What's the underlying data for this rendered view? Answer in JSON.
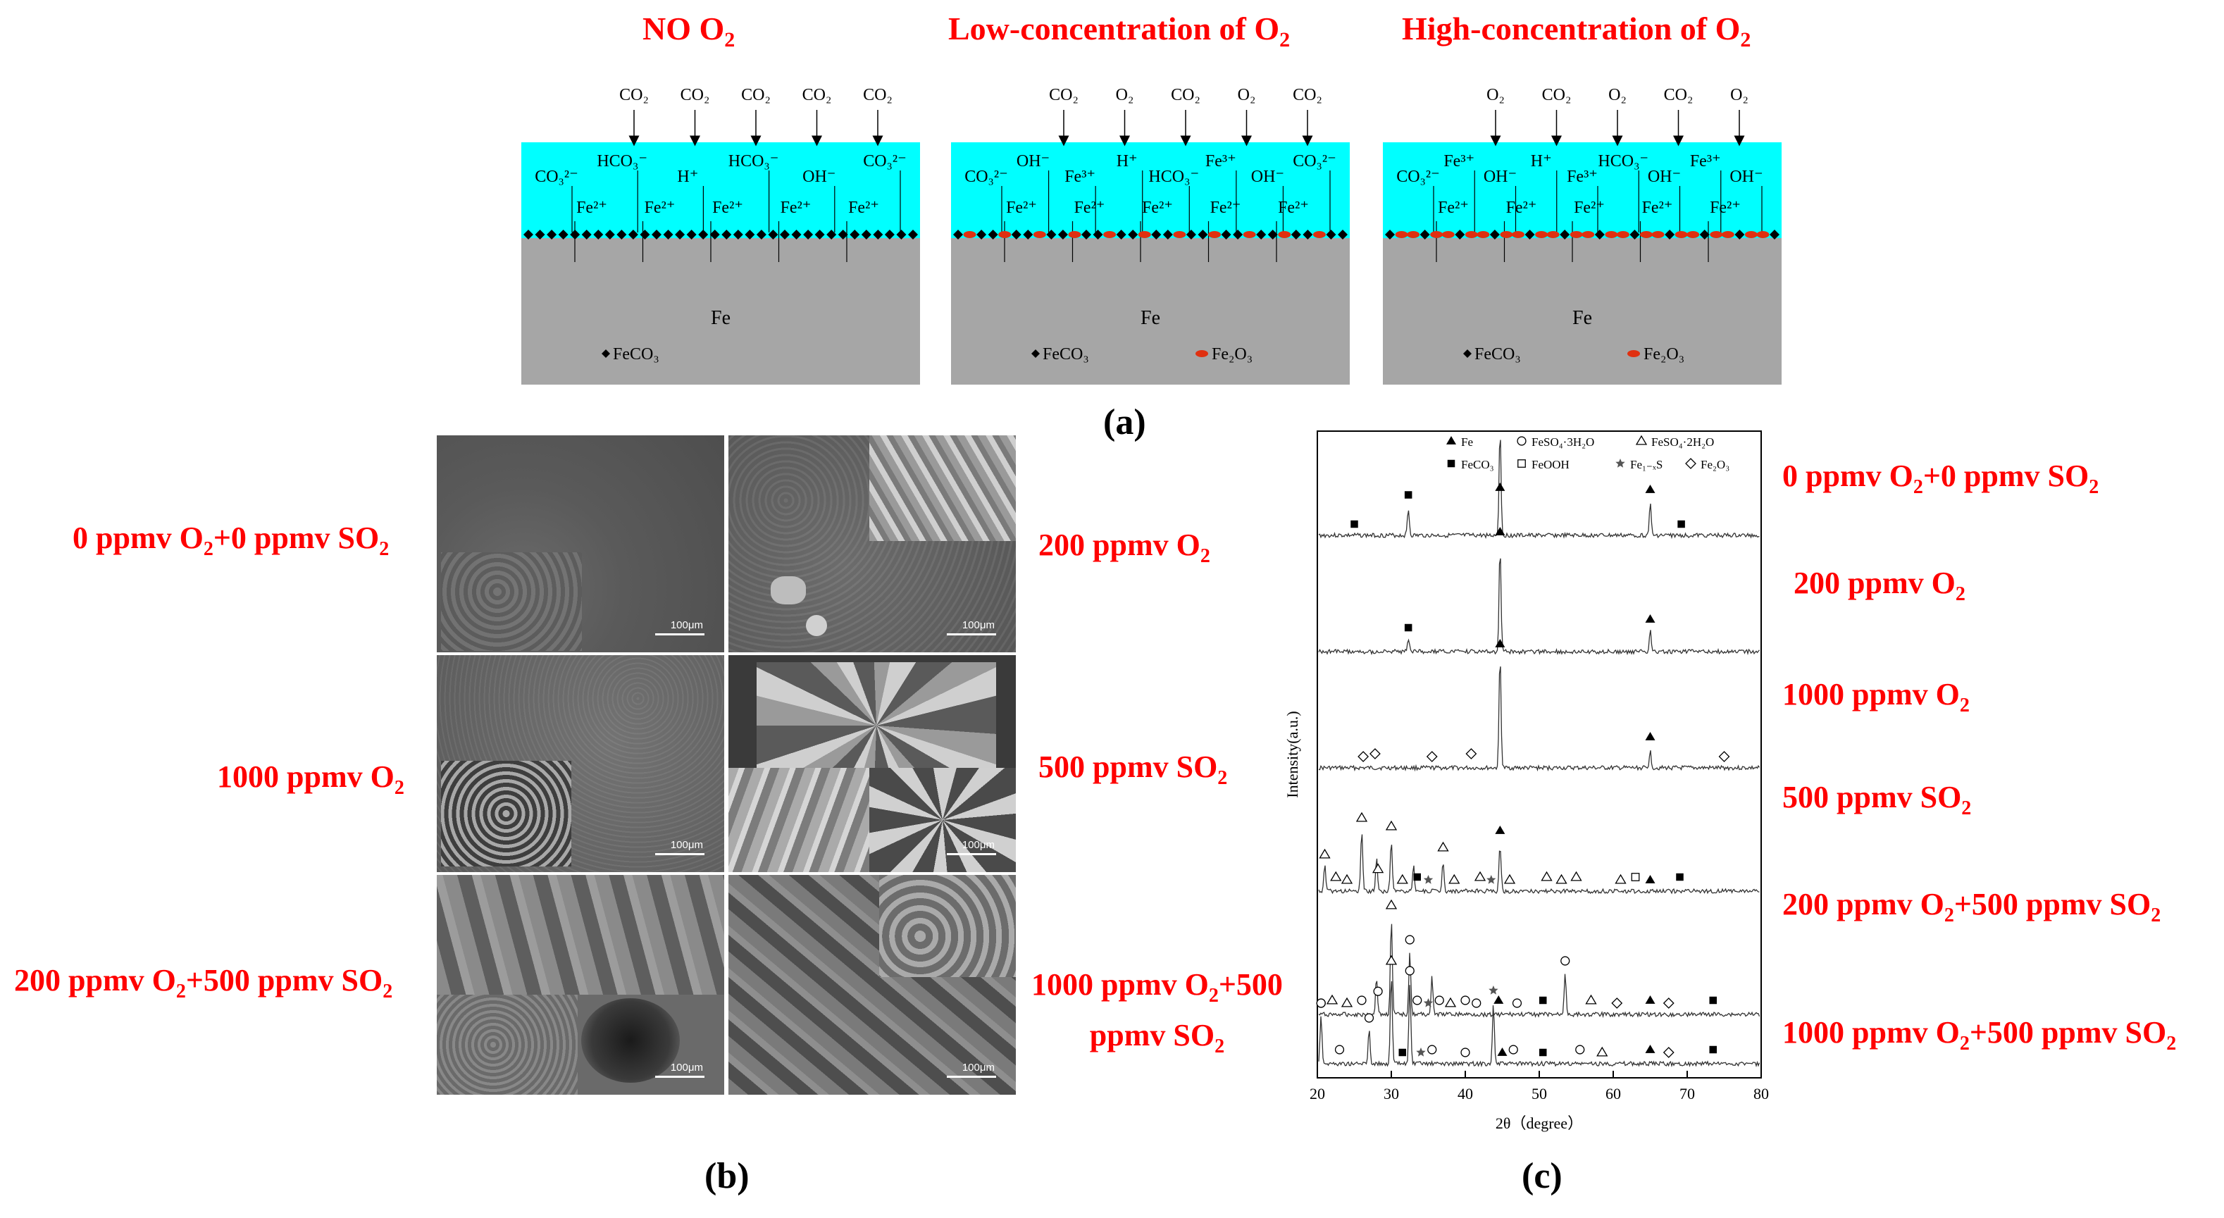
{
  "panel_a": {
    "label": "(a)",
    "diagrams": [
      {
        "title_main": "NO O",
        "title_sub": "2",
        "title_tail": "",
        "top_gases": [
          "CO₂",
          "CO₂",
          "CO₂",
          "CO₂",
          "CO₂"
        ],
        "solution_ions": [
          "CO₃²⁻",
          "HCO₃⁻",
          "H⁺",
          "HCO₃⁻",
          "OH⁻",
          "CO₃²⁻",
          "Fe²⁺",
          "Fe²⁺",
          "Fe²⁺",
          "Fe²⁺",
          "Fe²⁺"
        ],
        "metal": "Fe",
        "legend": [
          "FeCO₃"
        ]
      },
      {
        "title_main": "Low-concentration of O",
        "title_sub": "2",
        "title_tail": "",
        "top_gases": [
          "CO₂",
          "O₂",
          "CO₂",
          "O₂",
          "CO₂"
        ],
        "solution_ions": [
          "CO₃²⁻",
          "OH⁻",
          "Fe³⁺",
          "H⁺",
          "HCO₃⁻",
          "Fe³⁺",
          "OH⁻",
          "CO₃²⁻",
          "Fe²⁺",
          "Fe²⁺",
          "Fe²⁺",
          "Fe²⁺",
          "Fe²⁺"
        ],
        "metal": "Fe",
        "legend": [
          "FeCO₃",
          "Fe₂O₃"
        ]
      },
      {
        "title_main": "High-concentration of O",
        "title_sub": "2",
        "title_tail": "",
        "top_gases": [
          "O₂",
          "CO₂",
          "O₂",
          "CO₂",
          "O₂"
        ],
        "solution_ions": [
          "CO₃²⁻",
          "Fe³⁺",
          "OH⁻",
          "H⁺",
          "Fe³⁺",
          "HCO₃⁻",
          "OH⁻",
          "Fe³⁺",
          "OH⁻",
          "Fe²⁺",
          "Fe²⁺",
          "Fe²⁺",
          "Fe²⁺",
          "Fe²⁺"
        ],
        "metal": "Fe",
        "legend": [
          "FeCO₃",
          "Fe₂O₃"
        ]
      }
    ]
  },
  "panel_b": {
    "label": "(b)",
    "left_labels": [
      {
        "pre": "0 ppmv O",
        "sub1": "2",
        "mid": "+0 ppmv SO",
        "sub2": "2"
      },
      {
        "pre": "1000 ppmv O",
        "sub1": "2",
        "mid": "",
        "sub2": ""
      },
      {
        "pre": "200 ppmv O",
        "sub1": "2",
        "mid": "+500 ppmv SO",
        "sub2": "2"
      }
    ],
    "right_labels": [
      {
        "line1_pre": "200 ppmv O",
        "line1_sub": "2",
        "line2": ""
      },
      {
        "line1_pre": "500 ppmv SO",
        "line1_sub": "2",
        "line2": ""
      },
      {
        "line1_pre": "1000 ppmv O",
        "line1_sub": "2",
        "line1_tail": "+500",
        "line2": "ppmv SO",
        "line2_sub": "2"
      }
    ],
    "scale_bar": "100μm"
  },
  "panel_c": {
    "label": "(c)",
    "chart_data": {
      "type": "line",
      "xlabel": "2θ（degree）",
      "ylabel": "Intensity(a.u.)",
      "xlim": [
        20,
        80
      ],
      "xticks": [
        20,
        30,
        40,
        50,
        60,
        70,
        80
      ],
      "legend": [
        {
          "marker": "filled-triangle",
          "label": "Fe"
        },
        {
          "marker": "open-circle",
          "label": "FeSO₄·3H₂O"
        },
        {
          "marker": "open-triangle",
          "label": "FeSO₄·2H₂O"
        },
        {
          "marker": "filled-square",
          "label": "FeCO₃"
        },
        {
          "marker": "open-square",
          "label": "FeOOH"
        },
        {
          "marker": "star",
          "label": "Fe₁₋ₓS"
        },
        {
          "marker": "open-diamond",
          "label": "Fe₂O₃"
        }
      ],
      "series": [
        {
          "name": "0 ppmv O₂+0 ppmv SO₂",
          "peaks": [
            [
              32.3,
              0.25
            ],
            [
              44.7,
              1.0
            ],
            [
              65.0,
              0.3
            ]
          ],
          "markers": [
            [
              25,
              "filled-square"
            ],
            [
              32.3,
              "filled-square"
            ],
            [
              44.7,
              "filled-triangle"
            ],
            [
              65.0,
              "filled-triangle"
            ],
            [
              69.2,
              "filled-square"
            ]
          ]
        },
        {
          "name": "200 ppmv O₂",
          "peaks": [
            [
              32.3,
              0.12
            ],
            [
              44.7,
              1.0
            ],
            [
              65.0,
              0.2
            ]
          ],
          "markers": [
            [
              32.3,
              "filled-square"
            ],
            [
              44.7,
              "filled-triangle"
            ],
            [
              65.0,
              "filled-triangle"
            ]
          ]
        },
        {
          "name": "1000 ppmv O₂",
          "peaks": [
            [
              44.7,
              1.0
            ],
            [
              65.0,
              0.15
            ]
          ],
          "markers": [
            [
              26.2,
              "open-diamond"
            ],
            [
              27.8,
              "open-diamond"
            ],
            [
              35.5,
              "open-diamond"
            ],
            [
              40.8,
              "open-diamond"
            ],
            [
              44.7,
              "filled-triangle"
            ],
            [
              65.0,
              "filled-triangle"
            ],
            [
              75.0,
              "open-diamond"
            ]
          ]
        },
        {
          "name": "500 ppmv SO₂",
          "peaks": [
            [
              26.0,
              0.7
            ],
            [
              28.0,
              0.4
            ],
            [
              30.0,
              0.6
            ],
            [
              44.7,
              0.55
            ],
            [
              37.0,
              0.35
            ],
            [
              21.0,
              0.3
            ],
            [
              33.0,
              0.3
            ]
          ],
          "markers": [
            [
              21.0,
              "open-triangle"
            ],
            [
              22.5,
              "open-triangle"
            ],
            [
              24.0,
              "open-triangle"
            ],
            [
              26.0,
              "open-triangle"
            ],
            [
              28.2,
              "open-triangle"
            ],
            [
              30.0,
              "open-triangle"
            ],
            [
              31.5,
              "open-triangle"
            ],
            [
              33.5,
              "filled-square"
            ],
            [
              35.0,
              "star"
            ],
            [
              37.0,
              "open-triangle"
            ],
            [
              38.5,
              "open-triangle"
            ],
            [
              42.0,
              "open-triangle"
            ],
            [
              43.5,
              "star"
            ],
            [
              44.7,
              "filled-triangle"
            ],
            [
              46.0,
              "open-triangle"
            ],
            [
              51.0,
              "open-triangle"
            ],
            [
              53.0,
              "open-triangle"
            ],
            [
              55.0,
              "open-triangle"
            ],
            [
              61.0,
              "open-triangle"
            ],
            [
              63.0,
              "open-square"
            ],
            [
              65.0,
              "filled-triangle"
            ],
            [
              69.0,
              "filled-square"
            ]
          ]
        },
        {
          "name": "200 ppmv O₂+500 ppmv SO₂",
          "peaks": [
            [
              30.0,
              0.9
            ],
            [
              32.5,
              0.6
            ],
            [
              28.0,
              0.35
            ],
            [
              53.5,
              0.4
            ],
            [
              35.5,
              0.35
            ]
          ],
          "markers": [
            [
              20.5,
              "open-circle"
            ],
            [
              22.0,
              "open-triangle"
            ],
            [
              24.0,
              "open-triangle"
            ],
            [
              26.0,
              "open-circle"
            ],
            [
              28.2,
              "open-circle"
            ],
            [
              30.0,
              "open-triangle"
            ],
            [
              32.5,
              "open-circle"
            ],
            [
              33.5,
              "open-circle"
            ],
            [
              35.0,
              "star"
            ],
            [
              36.5,
              "open-circle"
            ],
            [
              38.0,
              "open-triangle"
            ],
            [
              40.0,
              "open-circle"
            ],
            [
              41.5,
              "open-circle"
            ],
            [
              44.5,
              "filled-triangle"
            ],
            [
              47.0,
              "open-circle"
            ],
            [
              50.5,
              "filled-square"
            ],
            [
              53.5,
              "open-circle"
            ],
            [
              57.0,
              "open-triangle"
            ],
            [
              60.5,
              "open-diamond"
            ],
            [
              65.0,
              "filled-triangle"
            ],
            [
              67.5,
              "open-diamond"
            ],
            [
              73.5,
              "filled-square"
            ]
          ]
        },
        {
          "name": "1000 ppmv O₂+500 ppmv SO₂",
          "peaks": [
            [
              30.0,
              0.9
            ],
            [
              32.5,
              0.8
            ],
            [
              43.8,
              0.6
            ],
            [
              20.5,
              0.5
            ],
            [
              27.0,
              0.35
            ]
          ],
          "markers": [
            [
              20.5,
              "open-circle"
            ],
            [
              23.0,
              "open-circle"
            ],
            [
              27.0,
              "open-circle"
            ],
            [
              30.0,
              "open-triangle"
            ],
            [
              31.5,
              "filled-square"
            ],
            [
              32.5,
              "open-circle"
            ],
            [
              34.0,
              "star"
            ],
            [
              35.5,
              "open-circle"
            ],
            [
              40.0,
              "open-circle"
            ],
            [
              43.8,
              "star"
            ],
            [
              45.0,
              "filled-triangle"
            ],
            [
              46.5,
              "open-circle"
            ],
            [
              50.5,
              "filled-square"
            ],
            [
              55.5,
              "open-circle"
            ],
            [
              58.5,
              "open-triangle"
            ],
            [
              65.0,
              "filled-triangle"
            ],
            [
              67.5,
              "open-diamond"
            ],
            [
              73.5,
              "filled-square"
            ]
          ]
        }
      ]
    },
    "right_labels": [
      {
        "pre": "0 ppmv O",
        "sub1": "2",
        "mid": "+0 ppmv SO",
        "sub2": "2"
      },
      {
        "pre": "200 ppmv O",
        "sub1": "2",
        "mid": "",
        "sub2": ""
      },
      {
        "pre": "1000 ppmv O",
        "sub1": "2",
        "mid": "",
        "sub2": ""
      },
      {
        "pre": "500 ppmv SO",
        "sub1": "2",
        "mid": "",
        "sub2": ""
      },
      {
        "pre": "200 ppmv O",
        "sub1": "2",
        "mid": "+500 ppmv SO",
        "sub2": "2"
      },
      {
        "pre": "1000 ppmv O",
        "sub1": "2",
        "mid": "+500 ppmv SO",
        "sub2": "2"
      }
    ]
  },
  "colors": {
    "label_red": "#ff0000",
    "solution": "#00ffff",
    "metal": "#a6a6a6",
    "fe2o3": "#e03010",
    "feco3": "#000000"
  }
}
